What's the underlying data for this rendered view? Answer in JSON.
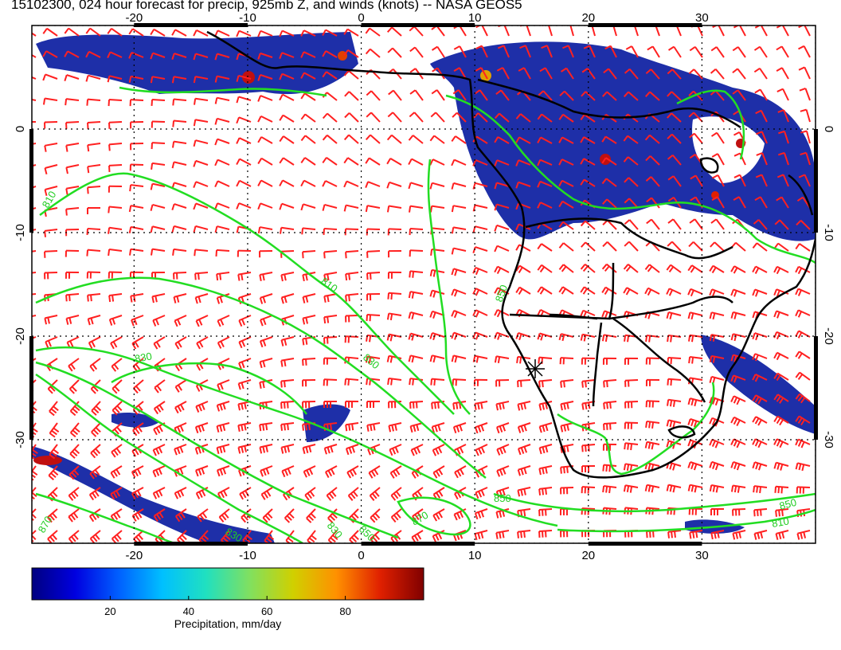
{
  "title": "15102300, 024 hour forecast for precip, 925mb Z, and winds (knots) -- NASA GEOS5",
  "map": {
    "lon_range": [
      -29,
      40
    ],
    "lat_range": [
      -40,
      10
    ],
    "lon_ticks": [
      "-20",
      "-10",
      "0",
      "10",
      "20",
      "30"
    ],
    "lon_tick_values": [
      -20,
      -10,
      0,
      10,
      20,
      30
    ],
    "lat_ticks": [
      "0",
      "-10",
      "-20",
      "-30"
    ],
    "lat_tick_values": [
      0,
      -10,
      -20,
      -30
    ],
    "contour_labels": [
      "810",
      "810",
      "830",
      "830",
      "850",
      "850",
      "870",
      "850",
      "830",
      "810",
      "870",
      "830",
      "850"
    ],
    "colors": {
      "contour": "#22dd22",
      "barb": "#ff2020",
      "coast": "#000000"
    }
  },
  "colorbar": {
    "ticks": [
      "20",
      "40",
      "60",
      "80"
    ],
    "tick_values": [
      20,
      40,
      60,
      80
    ],
    "range": [
      0,
      100
    ],
    "label": "Precipitation, mm/day",
    "colormap": [
      "#000080",
      "#0000e0",
      "#0060ff",
      "#00c0ff",
      "#20e0c0",
      "#80e060",
      "#d0d000",
      "#ff9000",
      "#e02000",
      "#800000"
    ]
  }
}
